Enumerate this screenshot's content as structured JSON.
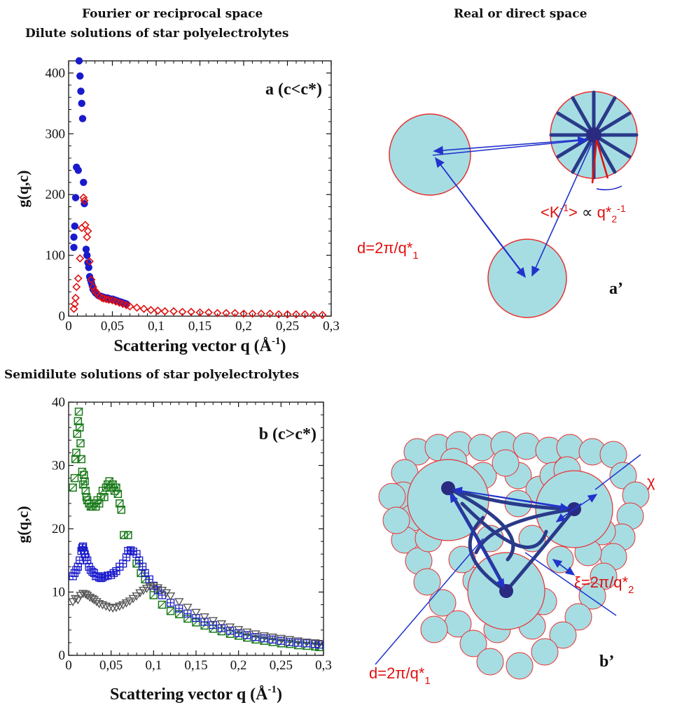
{
  "headers": {
    "fourier": "Fourier or reciprocal space",
    "real": "Real or direct space",
    "dilute": "Dilute solutions of star polyelectrolytes",
    "semidilute": "Semidilute solutions of star polyelectrolytes"
  },
  "chart_data": [
    {
      "type": "scatter",
      "panel_label": "a (c<c*)",
      "ylabel": "g(q,c)",
      "xlabel_main": "Scattering vector q (Å",
      "xlabel_sup": "-1",
      "xlabel_end": ")",
      "xlim": [
        0,
        0.3
      ],
      "ylim": [
        0,
        420
      ],
      "xticks": [
        0,
        0.05,
        0.1,
        0.15,
        0.2,
        0.25,
        0.3
      ],
      "xtick_labels": [
        "0",
        "0,05",
        "0,1",
        "0,15",
        "0,2",
        "0,25",
        "0,3"
      ],
      "yticks": [
        0,
        100,
        200,
        300,
        400
      ],
      "ytick_labels": [
        "0",
        "100",
        "200",
        "300",
        "400"
      ],
      "series": [
        {
          "marker": "circle",
          "color": "#1a1acc",
          "x": [
            0.006,
            0.006,
            0.007,
            0.008,
            0.009,
            0.011,
            0.012,
            0.013,
            0.014,
            0.015,
            0.016,
            0.017,
            0.018,
            0.02,
            0.021,
            0.022,
            0.023,
            0.024,
            0.025,
            0.026,
            0.027,
            0.028,
            0.03,
            0.031,
            0.032,
            0.034,
            0.036,
            0.038,
            0.04,
            0.042,
            0.044,
            0.046,
            0.048,
            0.05,
            0.052,
            0.054,
            0.056,
            0.058,
            0.06,
            0.062,
            0.064,
            0.066
          ],
          "y": [
            113,
            130,
            148,
            195,
            245,
            240,
            420,
            395,
            370,
            350,
            325,
            220,
            185,
            110,
            100,
            88,
            80,
            65,
            60,
            55,
            50,
            44,
            40,
            38,
            37,
            34,
            33,
            32,
            31,
            30,
            30,
            29,
            28,
            28,
            27,
            26,
            25,
            24,
            23,
            22,
            21,
            20
          ]
        },
        {
          "marker": "diamond",
          "color": "#e01010",
          "x": [
            0.006,
            0.007,
            0.008,
            0.009,
            0.011,
            0.013,
            0.015,
            0.017,
            0.018,
            0.019,
            0.021,
            0.022,
            0.024,
            0.026,
            0.028,
            0.03,
            0.032,
            0.035,
            0.038,
            0.04,
            0.043,
            0.046,
            0.05,
            0.054,
            0.058,
            0.062,
            0.066,
            0.07,
            0.078,
            0.086,
            0.094,
            0.102,
            0.11,
            0.12,
            0.13,
            0.14,
            0.15,
            0.16,
            0.17,
            0.18,
            0.19,
            0.2,
            0.21,
            0.22,
            0.23,
            0.24,
            0.25,
            0.26,
            0.27,
            0.28,
            0.29
          ],
          "y": [
            12,
            20,
            30,
            48,
            62,
            95,
            145,
            195,
            190,
            150,
            130,
            140,
            90,
            60,
            48,
            42,
            38,
            33,
            30,
            29,
            28,
            27,
            26,
            24,
            22,
            20,
            18,
            16,
            14,
            12,
            10,
            9,
            8,
            8,
            7,
            7,
            6,
            6,
            5,
            5,
            5,
            4,
            4,
            4,
            4,
            3,
            3,
            3,
            3,
            2,
            2
          ]
        }
      ]
    },
    {
      "type": "scatter",
      "panel_label": "b (c>c*)",
      "ylabel": "g(q,c)",
      "xlabel_main": "Scattering vector q (Å",
      "xlabel_sup": "-1",
      "xlabel_end": ")",
      "xlim": [
        0,
        0.3
      ],
      "ylim": [
        0,
        40
      ],
      "xticks": [
        0,
        0.05,
        0.1,
        0.15,
        0.2,
        0.25,
        0.3
      ],
      "xtick_labels": [
        "0",
        "0,05",
        "0,1",
        "0,15",
        "0,2",
        "0,25",
        "0,3"
      ],
      "yticks": [
        0,
        10,
        20,
        30,
        40
      ],
      "ytick_labels": [
        "0",
        "10",
        "20",
        "30",
        "40"
      ],
      "series": [
        {
          "marker": "square-slash",
          "color": "#1a7a1a",
          "x": [
            0.005,
            0.007,
            0.008,
            0.009,
            0.01,
            0.011,
            0.012,
            0.013,
            0.014,
            0.015,
            0.016,
            0.017,
            0.018,
            0.019,
            0.02,
            0.021,
            0.022,
            0.024,
            0.026,
            0.028,
            0.03,
            0.032,
            0.034,
            0.036,
            0.038,
            0.04,
            0.042,
            0.044,
            0.046,
            0.048,
            0.05,
            0.052,
            0.054,
            0.056,
            0.058,
            0.06,
            0.062,
            0.065,
            0.07,
            0.08,
            0.085,
            0.09,
            0.1,
            0.11,
            0.12,
            0.13,
            0.14,
            0.15,
            0.16,
            0.17,
            0.18,
            0.19,
            0.2,
            0.21,
            0.22,
            0.23,
            0.24,
            0.25,
            0.26,
            0.27,
            0.28,
            0.29,
            0.295
          ],
          "y": [
            26.5,
            28,
            31,
            32,
            35,
            37,
            38.5,
            36,
            33.5,
            31,
            29,
            27,
            28.5,
            27.5,
            26,
            25,
            24.5,
            24,
            23.5,
            23.5,
            24,
            23.5,
            24.5,
            24,
            25,
            26,
            25,
            26.5,
            27,
            27.5,
            26.5,
            27,
            26,
            26.5,
            25.5,
            24,
            23,
            19,
            19,
            14.5,
            13,
            12,
            9.5,
            8,
            7,
            6.5,
            5.8,
            5.2,
            4.7,
            4.2,
            3.8,
            3.4,
            3.1,
            2.8,
            2.5,
            2.3,
            2.1,
            1.9,
            1.8,
            1.6,
            1.5,
            1.4,
            1.3
          ]
        },
        {
          "marker": "plus-box",
          "color": "#1a1acc",
          "x": [
            0.005,
            0.007,
            0.009,
            0.011,
            0.013,
            0.015,
            0.016,
            0.017,
            0.018,
            0.019,
            0.02,
            0.022,
            0.024,
            0.026,
            0.028,
            0.03,
            0.032,
            0.034,
            0.036,
            0.038,
            0.04,
            0.043,
            0.046,
            0.05,
            0.053,
            0.056,
            0.06,
            0.064,
            0.068,
            0.07,
            0.073,
            0.076,
            0.08,
            0.083,
            0.087,
            0.09,
            0.095,
            0.1,
            0.105,
            0.11,
            0.12,
            0.13,
            0.14,
            0.15,
            0.16,
            0.17,
            0.18,
            0.19,
            0.2,
            0.21,
            0.22,
            0.23,
            0.24,
            0.25,
            0.26,
            0.27,
            0.28,
            0.29,
            0.295
          ],
          "y": [
            12.5,
            13,
            13.5,
            14,
            15,
            16.5,
            17,
            17.2,
            16.5,
            16,
            15.5,
            15,
            14,
            13.5,
            13.2,
            13,
            12.5,
            12.5,
            12.3,
            12.2,
            12.3,
            12.5,
            12.6,
            12.7,
            13,
            13.3,
            14,
            14.5,
            15.5,
            16.5,
            16.6,
            16.4,
            16,
            15,
            14,
            13,
            12,
            11,
            10.3,
            9.5,
            8.3,
            7.4,
            6.6,
            5.9,
            5.3,
            4.8,
            4.3,
            3.9,
            3.5,
            3.2,
            2.9,
            2.7,
            2.5,
            2.3,
            2.1,
            2,
            1.9,
            1.8,
            1.7
          ]
        },
        {
          "marker": "triangle-down",
          "color": "#555555",
          "x": [
            0.005,
            0.008,
            0.011,
            0.014,
            0.017,
            0.02,
            0.022,
            0.025,
            0.028,
            0.03,
            0.033,
            0.036,
            0.04,
            0.044,
            0.048,
            0.052,
            0.056,
            0.06,
            0.064,
            0.068,
            0.072,
            0.076,
            0.08,
            0.084,
            0.088,
            0.092,
            0.096,
            0.1,
            0.105,
            0.11,
            0.115,
            0.12,
            0.13,
            0.14,
            0.15,
            0.16,
            0.17,
            0.18,
            0.19,
            0.2,
            0.21,
            0.22,
            0.23,
            0.24,
            0.25,
            0.26,
            0.27,
            0.28,
            0.29,
            0.295
          ],
          "y": [
            8.5,
            9,
            8.8,
            9.5,
            9.8,
            9.7,
            9.5,
            9.2,
            9,
            8.8,
            8.5,
            8.2,
            8,
            7.8,
            7.6,
            7.5,
            7.6,
            7.8,
            8,
            8.3,
            8.6,
            9,
            9.4,
            9.9,
            10.3,
            10.6,
            10.8,
            11,
            10.7,
            10.3,
            9.9,
            9.4,
            8.5,
            7.6,
            6.8,
            6.1,
            5.5,
            5,
            4.5,
            4.1,
            3.7,
            3.4,
            3.1,
            2.9,
            2.7,
            2.5,
            2.3,
            2.1,
            2,
            1.9
          ]
        }
      ]
    }
  ],
  "diagram_a": {
    "label_d": "d=2π/q*",
    "label_d_sub": "1",
    "label_k_open": "<K",
    "label_k_sup": "-1",
    "label_k_close": ">",
    "label_prop": "∝",
    "label_q2": "q*",
    "label_q2_sub": "2",
    "label_q2_sup": "-1",
    "panel_label": "a’"
  },
  "diagram_b": {
    "label_chi": "χ",
    "label_xi": "ξ=2π/q*",
    "label_xi_sub": "2",
    "label_d": "d=2π/q*",
    "label_d_sub": "1",
    "panel_label": "b’"
  },
  "colors": {
    "sphere_fill": "#a6dde3",
    "sphere_edge": "#e83030",
    "core": "#2a2a80",
    "arrow": "#2233cc",
    "label_red": "#e01010",
    "label_blue": "#1a1acc"
  }
}
